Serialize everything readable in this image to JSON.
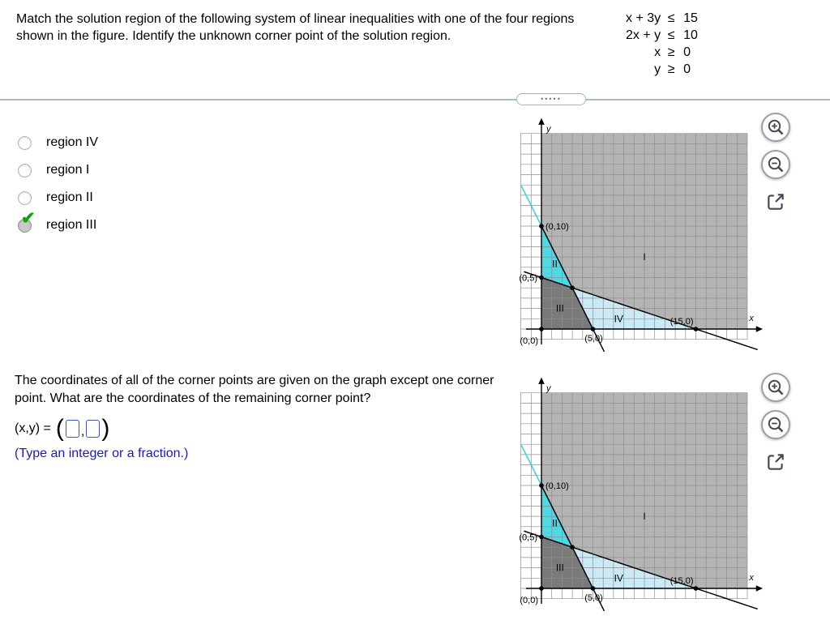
{
  "q1": {
    "text": "Match the solution region of the following system of linear inequalities with one of the four regions shown in the figure. Identify the unknown corner point of the solution region.",
    "system": [
      {
        "lhs": "x + 3y",
        "op": "≤",
        "rhs": "15"
      },
      {
        "lhs": "2x + y",
        "op": "≤",
        "rhs": "10"
      },
      {
        "lhs": "x",
        "op": "≥",
        "rhs": "0"
      },
      {
        "lhs": "y",
        "op": "≥",
        "rhs": "0"
      }
    ],
    "options": [
      {
        "label": "region IV",
        "selected": false
      },
      {
        "label": "region I",
        "selected": false
      },
      {
        "label": "region II",
        "selected": false
      },
      {
        "label": "region III",
        "selected": true
      }
    ]
  },
  "q2": {
    "text": "The coordinates of all of the corner points are given on the graph except one corner point. What are the coordinates of the remaining corner point?",
    "answer_prefix": "(x,y) =",
    "open_paren": "(",
    "comma": ",",
    "close_paren": ")",
    "input_x": "",
    "input_y": "",
    "hint": "(Type an integer or a fraction.)"
  },
  "divider_dots": "•••••",
  "icons": {
    "selected_check": "✔"
  },
  "chart_data": {
    "type": "inequality-region-plot",
    "note": "Same figure appears twice (top and bottom).",
    "axis_labels": {
      "x": "x",
      "y": "y"
    },
    "x_range": [
      -2,
      20
    ],
    "y_range": [
      -1,
      19
    ],
    "base_region_color": "#b4b4b4",
    "grid_color": "#8e8e8e",
    "boundary_lines": [
      {
        "equation": "2x + y = 10",
        "segment": [
          [
            0,
            10
          ],
          [
            6.1,
            -2.2
          ]
        ],
        "color": "#000000"
      },
      {
        "equation": "2x + y = 10 (extension above y-axis)",
        "segment": [
          [
            -2,
            14
          ],
          [
            0,
            10
          ]
        ],
        "color": "#2ed3e2"
      },
      {
        "equation": "x + 3y = 15",
        "segment": [
          [
            -1.7,
            5.57
          ],
          [
            21.0,
            -2.0
          ]
        ],
        "color": "#000000"
      }
    ],
    "regions": [
      {
        "name": "I",
        "color": "#b4b4b4",
        "label_at": [
          10,
          7
        ]
      },
      {
        "name": "II",
        "color": "#4ed9e7",
        "polygon": [
          [
            0,
            5
          ],
          [
            0,
            10
          ],
          [
            3,
            4
          ]
        ],
        "label_at": [
          1.3,
          6.35
        ]
      },
      {
        "name": "III",
        "color": "#7a7a7a",
        "polygon": [
          [
            0,
            0
          ],
          [
            0,
            5
          ],
          [
            3,
            4
          ],
          [
            5,
            0
          ]
        ],
        "label_at": [
          1.8,
          2.0
        ]
      },
      {
        "name": "IV",
        "color": "#cce9f6",
        "polygon": [
          [
            3,
            4
          ],
          [
            5,
            0
          ],
          [
            15,
            0
          ]
        ],
        "label_at": [
          7.5,
          1.0
        ]
      }
    ],
    "corner_points": [
      {
        "xy": [
          0,
          10
        ],
        "label": "(0,10)",
        "label_pos": "right"
      },
      {
        "xy": [
          0,
          5
        ],
        "label": "(0,5)",
        "label_pos": "left"
      },
      {
        "xy": [
          0,
          0
        ],
        "label": "(0,0)",
        "label_pos": "below-left"
      },
      {
        "xy": [
          5,
          0
        ],
        "label": "(5,0)",
        "label_pos": "below"
      },
      {
        "xy": [
          15,
          0
        ],
        "label": "(15,0)",
        "label_pos": "above-left"
      },
      {
        "xy": [
          3,
          4
        ],
        "label": "",
        "label_pos": "none"
      }
    ]
  }
}
